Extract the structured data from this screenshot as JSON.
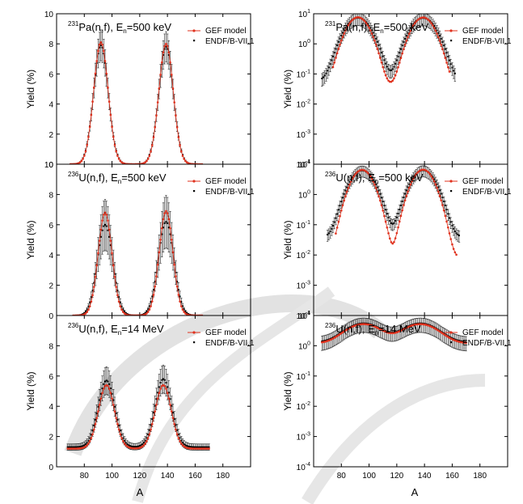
{
  "x_label": "A",
  "chart_data": [
    {
      "id": "p0",
      "type": "line",
      "scale": "linear",
      "title": "231Pa(n,f), En=500 keV",
      "title_nuclide": "231",
      "title_main": "Pa(n,f), E",
      "title_sub": "n",
      "title_tail": "=500 keV",
      "xlim": [
        60,
        200
      ],
      "xticks": [
        80,
        100,
        120,
        140,
        160,
        180
      ],
      "ylim": [
        0,
        10
      ],
      "yticks": [
        0,
        2,
        4,
        6,
        8,
        10
      ],
      "ylabel": "Yield (%)",
      "legend": [
        "GEF model",
        "ENDF/B-VII.1"
      ],
      "model": {
        "peaks": [
          {
            "mu": 92,
            "sigma": 5.2,
            "amp": 8.1
          },
          {
            "mu": 139,
            "sigma": 5.2,
            "amp": 8.0
          }
        ],
        "floor": 0.0,
        "range": [
          70,
          165
        ]
      },
      "endf": {
        "peaks": [
          {
            "mu": 92,
            "sigma": 5.3,
            "amp": 7.9
          },
          {
            "mu": 139,
            "sigma": 5.3,
            "amp": 7.8
          }
        ],
        "floor": 0.0,
        "range": [
          70,
          165
        ],
        "rel_err": 0.13
      }
    },
    {
      "id": "p1",
      "type": "line",
      "scale": "log",
      "title": "231Pa(n,f), En=500 keV",
      "title_nuclide": "231",
      "title_main": "Pa(n,f), E",
      "title_sub": "n",
      "title_tail": "=500 keV",
      "xlim": [
        60,
        200
      ],
      "xticks": [
        80,
        100,
        120,
        140,
        160,
        180
      ],
      "ylim_exp": [
        -4,
        1
      ],
      "ytick_exps": [
        -4,
        -3,
        -2,
        -1,
        0,
        1
      ],
      "ylabel": "Yield (%)",
      "legend": [
        "GEF model",
        "ENDF/B-VII.1"
      ],
      "model": {
        "peaks": [
          {
            "mu": 92,
            "sigma": 6.3,
            "amp": 7.6
          },
          {
            "mu": 139,
            "sigma": 6.3,
            "amp": 7.5
          }
        ],
        "floor": 0.04,
        "range": [
          74,
          158
        ]
      },
      "endf": {
        "peaks": [
          {
            "mu": 92,
            "sigma": 7.2,
            "amp": 7.3
          },
          {
            "mu": 139,
            "sigma": 7.2,
            "amp": 7.2
          }
        ],
        "floor": 0.06,
        "range": [
          66,
          162
        ],
        "rel_err": 0.45
      }
    },
    {
      "id": "p2",
      "type": "line",
      "scale": "linear",
      "title": "236U(n,f), En=500 keV",
      "title_nuclide": "236",
      "title_main": "U(n,f), E",
      "title_sub": "n",
      "title_tail": "=500 keV",
      "xlim": [
        60,
        200
      ],
      "xticks": [
        80,
        100,
        120,
        140,
        160,
        180
      ],
      "ylim": [
        0,
        10
      ],
      "yticks": [
        0,
        2,
        4,
        6,
        8,
        10
      ],
      "ylabel": "Yield (%)",
      "legend": [
        "GEF model",
        "ENDF/B-VII.1"
      ],
      "model": {
        "peaks": [
          {
            "mu": 95,
            "sigma": 5.0,
            "amp": 6.8
          },
          {
            "mu": 139,
            "sigma": 5.0,
            "amp": 6.9
          }
        ],
        "floor": 0.0,
        "range": [
          72,
          165
        ]
      },
      "endf": {
        "peaks": [
          {
            "mu": 95,
            "sigma": 5.6,
            "amp": 6.0
          },
          {
            "mu": 139,
            "sigma": 5.6,
            "amp": 6.2
          }
        ],
        "floor": 0.0,
        "range": [
          72,
          165
        ],
        "rel_err": 0.28
      }
    },
    {
      "id": "p3",
      "type": "line",
      "scale": "log",
      "title": "236U(n,f), En=500 keV",
      "title_nuclide": "236",
      "title_main": "U(n,f), E",
      "title_sub": "n",
      "title_tail": "=500 keV",
      "xlim": [
        60,
        200
      ],
      "xticks": [
        80,
        100,
        120,
        140,
        160,
        180
      ],
      "ylim_exp": [
        -4,
        1
      ],
      "ytick_exps": [
        -4,
        -3,
        -2,
        -1,
        0,
        1
      ],
      "ylabel": "Yield (%)",
      "legend": [
        "GEF model",
        "ENDF/B-VII.1"
      ],
      "model": {
        "peaks": [
          {
            "mu": 95,
            "sigma": 6.0,
            "amp": 6.5
          },
          {
            "mu": 139,
            "sigma": 6.0,
            "amp": 6.6
          }
        ],
        "floor": 0.008,
        "range": [
          76,
          163
        ]
      },
      "endf": {
        "peaks": [
          {
            "mu": 95,
            "sigma": 6.8,
            "amp": 6.2
          },
          {
            "mu": 139,
            "sigma": 6.8,
            "amp": 6.3
          }
        ],
        "floor": 0.04,
        "range": [
          70,
          165
        ],
        "rel_err": 0.4
      }
    },
    {
      "id": "p4",
      "type": "line",
      "scale": "linear",
      "title": "236U(n,f), En=14 MeV",
      "title_nuclide": "236",
      "title_main": "U(n,f), E",
      "title_sub": "n",
      "title_tail": "=14 MeV",
      "xlim": [
        60,
        200
      ],
      "xticks": [
        80,
        100,
        120,
        140,
        160,
        180
      ],
      "ylim": [
        0,
        10
      ],
      "yticks": [
        0,
        2,
        4,
        6,
        8
      ],
      "ylabel": "Yield (%)",
      "legend": [
        "GEF model",
        "ENDF/B-VII.1"
      ],
      "model": {
        "peaks": [
          {
            "mu": 96,
            "sigma": 5.8,
            "amp": 4.2
          },
          {
            "mu": 137,
            "sigma": 5.8,
            "amp": 4.2
          }
        ],
        "floor": 1.2,
        "range": [
          68,
          170
        ]
      },
      "endf": {
        "peaks": [
          {
            "mu": 96,
            "sigma": 6.0,
            "amp": 4.4
          },
          {
            "mu": 137,
            "sigma": 6.0,
            "amp": 4.5
          }
        ],
        "floor": 1.3,
        "range": [
          68,
          170
        ],
        "rel_err": 0.16
      }
    },
    {
      "id": "p5",
      "type": "line",
      "scale": "log",
      "title": "236U(n,f), En=14 MeV",
      "title_nuclide": "236",
      "title_main": "U(n,f), E",
      "title_sub": "n",
      "title_tail": "=14 MeV",
      "xlim": [
        60,
        200
      ],
      "xticks": [
        80,
        100,
        120,
        140,
        160,
        180
      ],
      "ylim_exp": [
        -4,
        1
      ],
      "ytick_exps": [
        -4,
        -3,
        -2,
        -1,
        0,
        1
      ],
      "ylabel": "Yield (%)",
      "legend": [
        "GEF model",
        "ENDF/B-VII.1"
      ],
      "model": {
        "peaks": [
          {
            "mu": 96,
            "sigma": 11,
            "amp": 4.0
          },
          {
            "mu": 137,
            "sigma": 11,
            "amp": 4.0
          }
        ],
        "floor": 1.2,
        "range": [
          66,
          170
        ]
      },
      "endf": {
        "peaks": [
          {
            "mu": 96,
            "sigma": 11,
            "amp": 4.2
          },
          {
            "mu": 137,
            "sigma": 11,
            "amp": 4.2
          }
        ],
        "floor": 1.3,
        "range": [
          66,
          170
        ],
        "rel_err": 0.5
      }
    }
  ]
}
